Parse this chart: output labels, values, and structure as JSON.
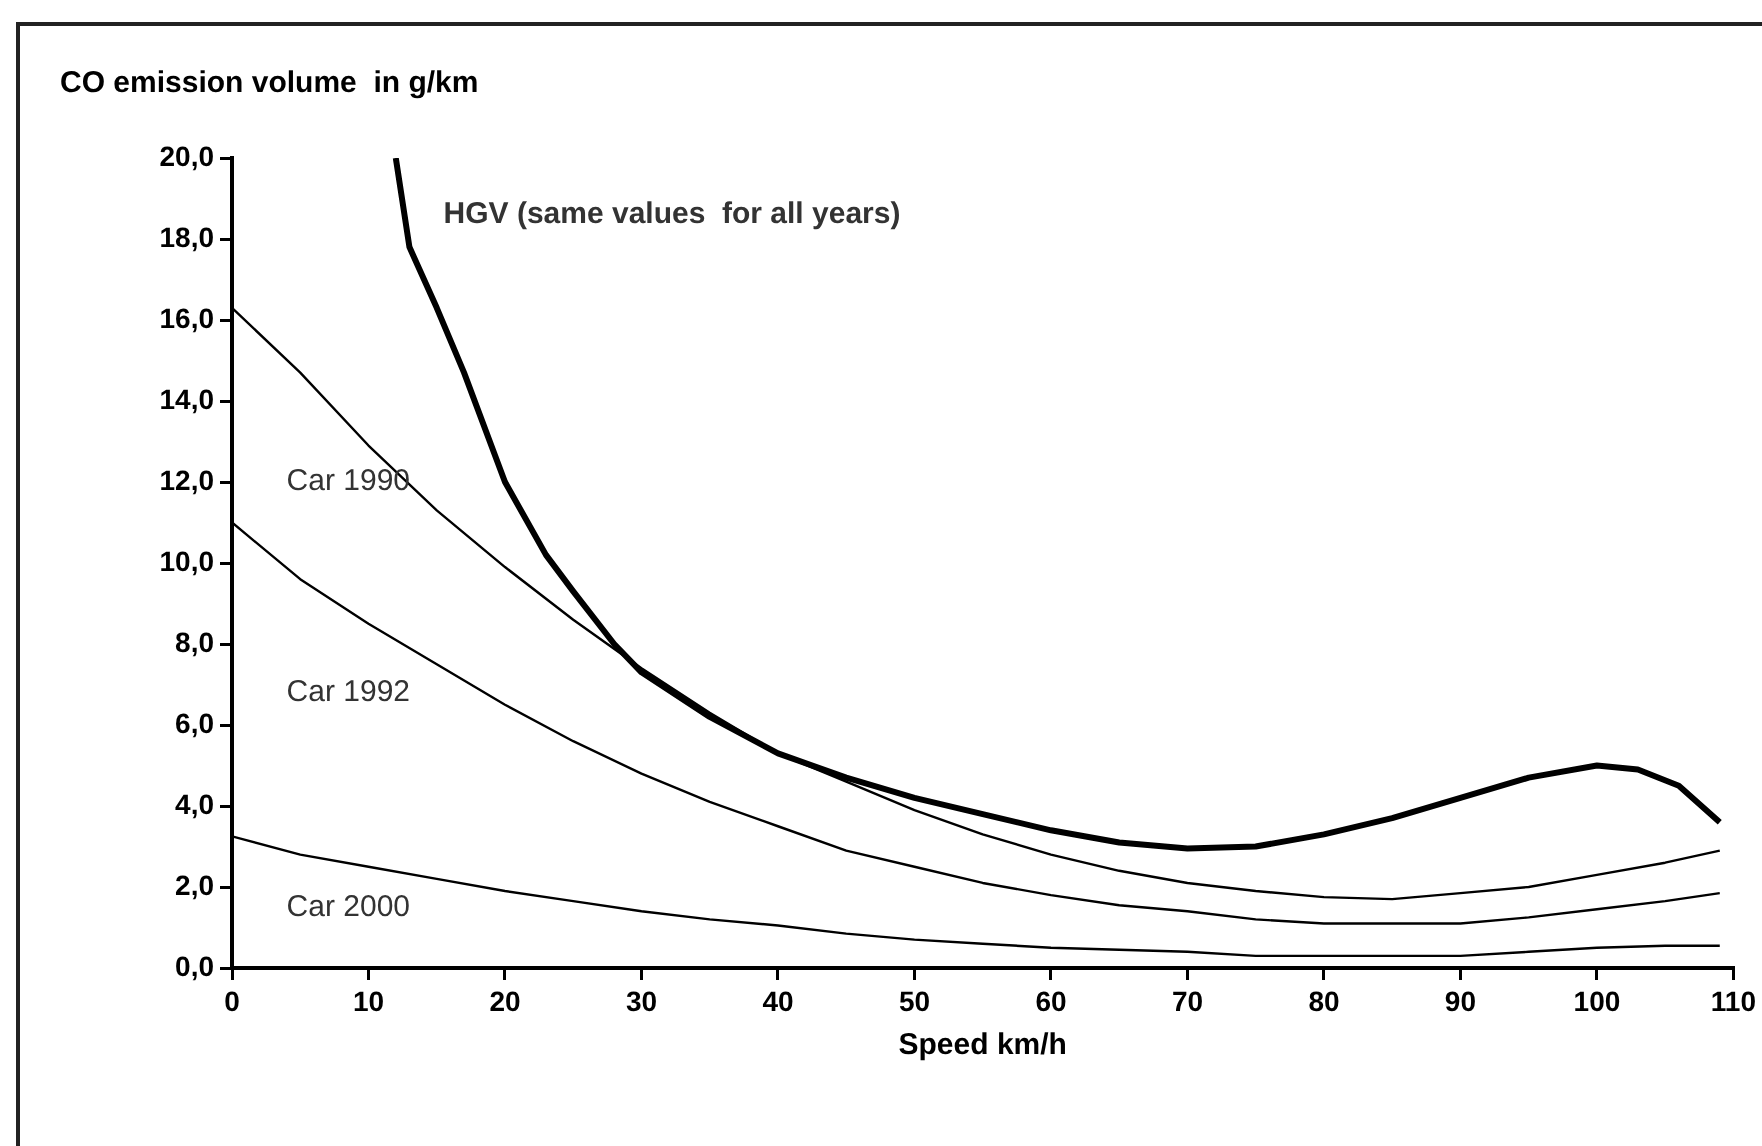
{
  "chart_data": {
    "type": "line",
    "ylabel": "CO emission volume  in g/km",
    "xlabel": "Speed km/h",
    "xlim": [
      0,
      110
    ],
    "xticks": [
      0,
      10,
      20,
      30,
      40,
      50,
      60,
      70,
      80,
      90,
      100,
      110
    ],
    "ylim": [
      0,
      20
    ],
    "yticks": [
      {
        "value": 0,
        "label": "0,0"
      },
      {
        "value": 2,
        "label": "2,0"
      },
      {
        "value": 4,
        "label": "4,0"
      },
      {
        "value": 6,
        "label": "6,0"
      },
      {
        "value": 8,
        "label": "8,0"
      },
      {
        "value": 10,
        "label": "10,0"
      },
      {
        "value": 12,
        "label": "12,0"
      },
      {
        "value": 14,
        "label": "14,0"
      },
      {
        "value": 16,
        "label": "16,0"
      },
      {
        "value": 18,
        "label": "18,0"
      },
      {
        "value": 20,
        "label": "20,0"
      }
    ],
    "grid": false,
    "legend": false,
    "marker": "none",
    "line_style": "solid",
    "series": [
      {
        "name": "HGV (same values  for all years)",
        "color": "#000000",
        "x": [
          12,
          13,
          15,
          17,
          20,
          23,
          25,
          28,
          30,
          35,
          40,
          45,
          50,
          55,
          60,
          65,
          70,
          75,
          80,
          85,
          90,
          95,
          100,
          103,
          106,
          109
        ],
        "values": [
          20,
          17.8,
          16.3,
          14.7,
          12.0,
          10.2,
          9.3,
          8.0,
          7.3,
          6.2,
          5.3,
          4.7,
          4.2,
          3.8,
          3.4,
          3.1,
          2.95,
          3.0,
          3.3,
          3.7,
          4.2,
          4.7,
          5.0,
          4.9,
          4.5,
          3.6
        ]
      },
      {
        "name": "Car 1990",
        "color": "#000000",
        "x": [
          0,
          5,
          10,
          15,
          20,
          25,
          30,
          35,
          40,
          45,
          50,
          55,
          60,
          65,
          70,
          75,
          80,
          85,
          90,
          95,
          100,
          105,
          109
        ],
        "values": [
          16.3,
          14.7,
          12.9,
          11.3,
          9.9,
          8.6,
          7.4,
          6.3,
          5.3,
          4.6,
          3.9,
          3.3,
          2.8,
          2.4,
          2.1,
          1.9,
          1.75,
          1.7,
          1.85,
          2.0,
          2.3,
          2.6,
          2.9
        ]
      },
      {
        "name": "Car 1992",
        "color": "#000000",
        "x": [
          0,
          5,
          10,
          15,
          20,
          25,
          30,
          35,
          40,
          45,
          50,
          55,
          60,
          65,
          70,
          75,
          80,
          85,
          90,
          95,
          100,
          105,
          109
        ],
        "values": [
          11.0,
          9.6,
          8.5,
          7.5,
          6.5,
          5.6,
          4.8,
          4.1,
          3.5,
          2.9,
          2.5,
          2.1,
          1.8,
          1.55,
          1.4,
          1.2,
          1.1,
          1.1,
          1.1,
          1.25,
          1.45,
          1.65,
          1.85
        ]
      },
      {
        "name": "Car 2000",
        "color": "#000000",
        "x": [
          0,
          5,
          10,
          15,
          20,
          25,
          30,
          35,
          40,
          45,
          50,
          55,
          60,
          65,
          70,
          75,
          80,
          85,
          90,
          95,
          100,
          105,
          109
        ],
        "values": [
          3.25,
          2.8,
          2.5,
          2.2,
          1.9,
          1.65,
          1.4,
          1.2,
          1.05,
          0.85,
          0.7,
          0.6,
          0.5,
          0.45,
          0.4,
          0.3,
          0.3,
          0.3,
          0.3,
          0.4,
          0.5,
          0.55,
          0.55
        ]
      }
    ]
  }
}
